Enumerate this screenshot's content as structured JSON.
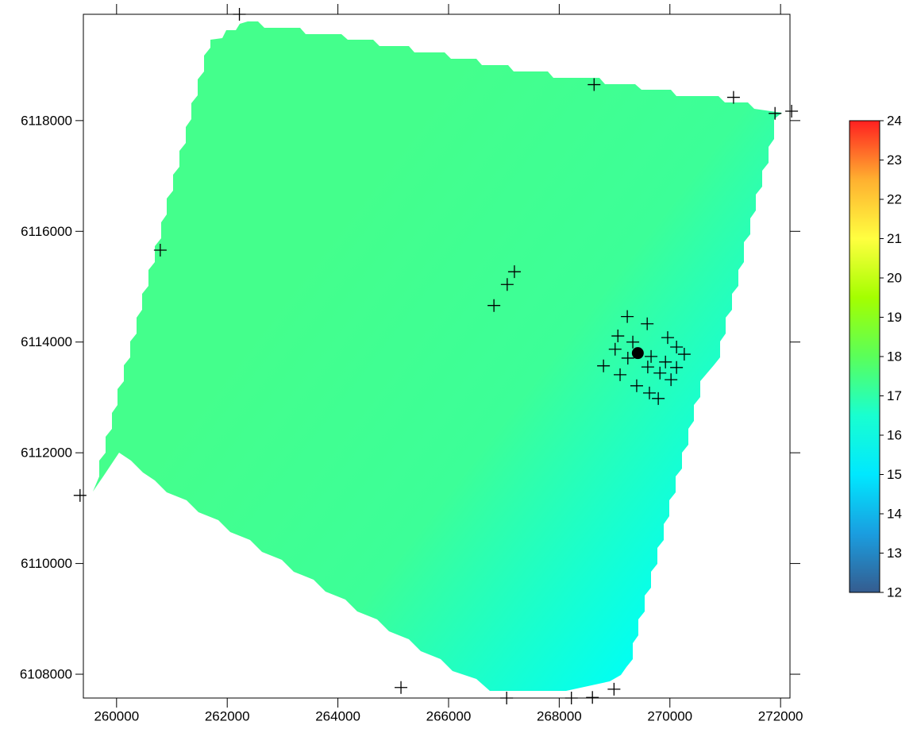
{
  "chart_data": {
    "type": "map",
    "xlim": [
      259400,
      272170
    ],
    "ylim": [
      6107570,
      6119920
    ],
    "xticks": [
      260000,
      262000,
      264000,
      266000,
      268000,
      270000,
      272000
    ],
    "yticks": [
      6108000,
      6110000,
      6112000,
      6114000,
      6116000,
      6118000
    ],
    "surface_colors": [
      "#44ff8c",
      "#3cff98",
      "#00fff4"
    ],
    "points": {
      "marker": "cross",
      "color": "#000000",
      "x": [
        262220,
        268630,
        271150,
        271900,
        272200,
        260790,
        267190,
        267060,
        266820,
        269230,
        269590,
        269060,
        269960,
        269330,
        269010,
        270120,
        270260,
        269660,
        269240,
        269920,
        268800,
        270120,
        269600,
        269820,
        269100,
        270020,
        269400,
        269630,
        269790,
        259340,
        265140,
        267050,
        268220,
        268600,
        268990
      ],
      "y": [
        6119920,
        6118650,
        6118420,
        6118130,
        6118170,
        6115660,
        6115270,
        6115040,
        6114660,
        6114460,
        6114330,
        6114110,
        6114080,
        6114000,
        6113870,
        6113910,
        6113780,
        6113740,
        6113710,
        6113640,
        6113570,
        6113540,
        6113550,
        6113440,
        6113410,
        6113320,
        6113210,
        6113080,
        6112980,
        6111230,
        6107760,
        6107570,
        6107570,
        6107580,
        6107730
      ]
    },
    "highlight": {
      "marker": "dot",
      "color": "#000000",
      "x": 269420,
      "y": 6113800
    },
    "colorbar": {
      "lim": [
        12,
        24
      ],
      "ticks": [
        12,
        13,
        14,
        15,
        16,
        17,
        18,
        19,
        20,
        21,
        22,
        23,
        24
      ],
      "colors": [
        "#355c8f",
        "#1a9ee0",
        "#00e8ff",
        "#19ffd0",
        "#5aff5a",
        "#a4ff00",
        "#ffff40",
        "#ffb030",
        "#ff2020"
      ]
    }
  }
}
